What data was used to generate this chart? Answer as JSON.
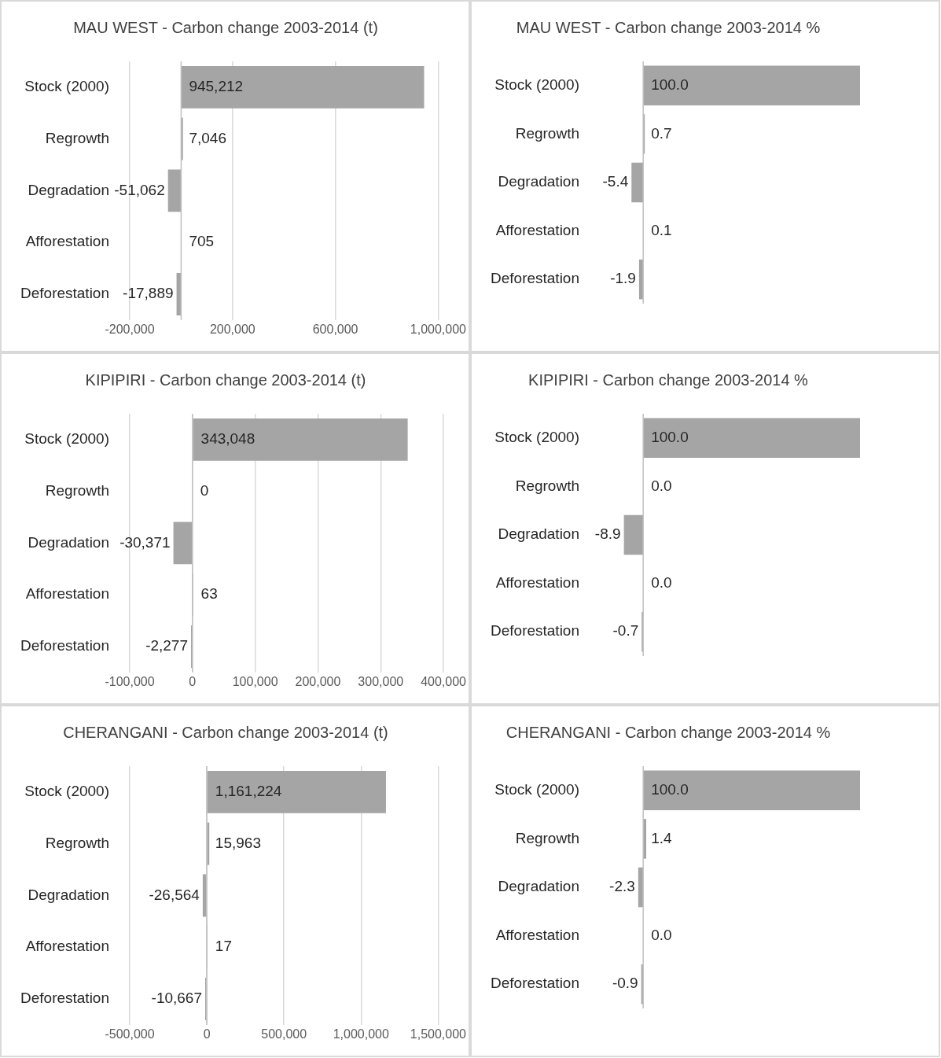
{
  "chart_data": [
    {
      "type": "bar",
      "orientation": "horizontal",
      "title": "MAU WEST - Carbon change 2003-2014 (t)",
      "categories": [
        "Stock (2000)",
        "Regrowth",
        "Degradation",
        "Afforestation",
        "Deforestation"
      ],
      "values": [
        945212,
        7046,
        -51062,
        705,
        -17889
      ],
      "value_labels": [
        "945,212",
        "7,046",
        "-51,062",
        "705",
        "-17,889"
      ],
      "color": "#a5a5a5",
      "xlim": [
        -200000,
        1000000
      ],
      "xticks": [
        {
          "value": -200000,
          "label": "-200,000"
        },
        {
          "value": 200000,
          "label": "200,000"
        },
        {
          "value": 600000,
          "label": "600,000"
        },
        {
          "value": 1000000,
          "label": "1,000,000"
        }
      ],
      "grid": "x",
      "legend": false
    },
    {
      "type": "bar",
      "orientation": "horizontal",
      "title": "MAU WEST - Carbon change 2003-2014 %",
      "categories": [
        "Stock (2000)",
        "Regrowth",
        "Degradation",
        "Afforestation",
        "Deforestation"
      ],
      "values": [
        100,
        0.7,
        -5.4,
        0.1,
        -1.9
      ],
      "value_labels": [
        "100.0",
        "0.7",
        "-5.4",
        "0.1",
        "-1.9"
      ],
      "color": "#a5a5a5",
      "tick_labels": "y",
      "grid": false,
      "legend": false
    },
    {
      "type": "bar",
      "orientation": "horizontal",
      "title": "KIPIPIRI - Carbon change 2003-2014 (t)",
      "categories": [
        "Stock (2000)",
        "Regrowth",
        "Degradation",
        "Afforestation",
        "Deforestation"
      ],
      "values": [
        343048,
        0,
        -30371,
        63,
        -2277
      ],
      "value_labels": [
        "343,048",
        "0",
        "-30,371",
        "63",
        "-2,277"
      ],
      "color": "#a5a5a5",
      "xlim": [
        -100000,
        400000
      ],
      "xticks": [
        {
          "value": -100000,
          "label": "-100,000"
        },
        {
          "value": 0,
          "label": "0"
        },
        {
          "value": 100000,
          "label": "100,000"
        },
        {
          "value": 200000,
          "label": "200,000"
        },
        {
          "value": 300000,
          "label": "300,000"
        },
        {
          "value": 400000,
          "label": "400,000"
        }
      ],
      "grid": "x",
      "legend": false
    },
    {
      "type": "bar",
      "orientation": "horizontal",
      "title": "KIPIPIRI - Carbon change 2003-2014 %",
      "categories": [
        "Stock (2000)",
        "Regrowth",
        "Degradation",
        "Afforestation",
        "Deforestation"
      ],
      "values": [
        100,
        0,
        -8.9,
        0,
        -0.7
      ],
      "value_labels": [
        "100.0",
        "0.0",
        "-8.9",
        "0.0",
        "-0.7"
      ],
      "color": "#a5a5a5",
      "tick_labels": "y",
      "grid": false,
      "legend": false
    },
    {
      "type": "bar",
      "orientation": "horizontal",
      "title": "CHERANGANI - Carbon change 2003-2014 (t)",
      "categories": [
        "Stock (2000)",
        "Regrowth",
        "Degradation",
        "Afforestation",
        "Deforestation"
      ],
      "values": [
        1161224,
        15963,
        -26564,
        17,
        -10667
      ],
      "value_labels": [
        "1,161,224",
        "15,963",
        "-26,564",
        "17",
        "-10,667"
      ],
      "color": "#a5a5a5",
      "xlim": [
        -500000,
        1500000
      ],
      "xticks": [
        {
          "value": -500000,
          "label": "-500,000"
        },
        {
          "value": 0,
          "label": "0"
        },
        {
          "value": 500000,
          "label": "500,000"
        },
        {
          "value": 1000000,
          "label": "1,000,000"
        },
        {
          "value": 1500000,
          "label": "1,500,000"
        }
      ],
      "grid": "x",
      "legend": false
    },
    {
      "type": "bar",
      "orientation": "horizontal",
      "title": "CHERANGANI - Carbon change 2003-2014 %",
      "categories": [
        "Stock (2000)",
        "Regrowth",
        "Degradation",
        "Afforestation",
        "Deforestation"
      ],
      "values": [
        100,
        1.4,
        -2.3,
        0,
        -0.9
      ],
      "value_labels": [
        "100.0",
        "1.4",
        "-2.3",
        "0.0",
        "-0.9"
      ],
      "color": "#a5a5a5",
      "tick_labels": "y",
      "grid": false,
      "legend": false
    }
  ]
}
